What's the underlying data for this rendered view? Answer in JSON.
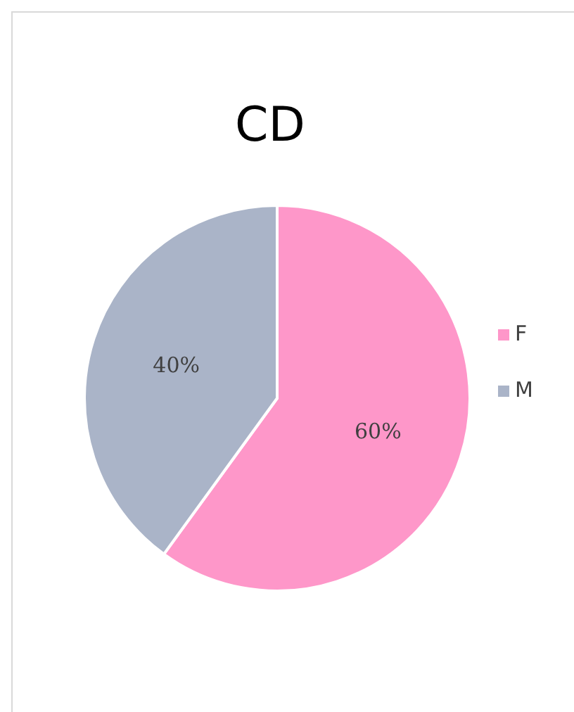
{
  "chart_data": {
    "type": "pie",
    "title": "CD",
    "categories": [
      "F",
      "M"
    ],
    "values": [
      60,
      40
    ],
    "colors": [
      "#fe97c9",
      "#aab4c8"
    ],
    "value_labels": [
      "60%",
      "40%"
    ],
    "legend": "right"
  }
}
